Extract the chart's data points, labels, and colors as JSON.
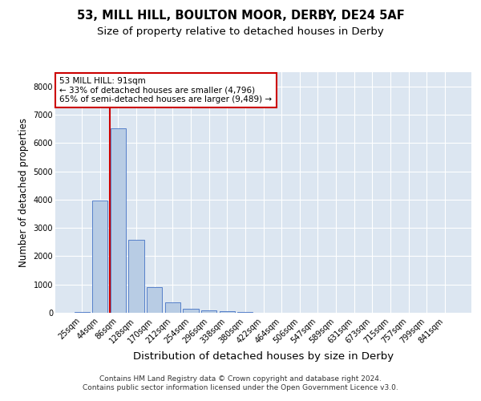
{
  "title_line1": "53, MILL HILL, BOULTON MOOR, DERBY, DE24 5AF",
  "title_line2": "Size of property relative to detached houses in Derby",
  "xlabel": "Distribution of detached houses by size in Derby",
  "ylabel": "Number of detached properties",
  "categories": [
    "25sqm",
    "44sqm",
    "86sqm",
    "128sqm",
    "170sqm",
    "212sqm",
    "254sqm",
    "296sqm",
    "338sqm",
    "380sqm",
    "422sqm",
    "464sqm",
    "506sqm",
    "547sqm",
    "589sqm",
    "631sqm",
    "673sqm",
    "715sqm",
    "757sqm",
    "799sqm",
    "841sqm"
  ],
  "values": [
    30,
    3960,
    6520,
    2580,
    900,
    370,
    155,
    90,
    45,
    30,
    0,
    0,
    0,
    0,
    0,
    0,
    0,
    0,
    0,
    0,
    0
  ],
  "bar_color": "#b8cce4",
  "bar_edge_color": "#4472c4",
  "plot_bg_color": "#dce6f1",
  "grid_color": "#ffffff",
  "vline_color": "#cc0000",
  "annotation_text": "53 MILL HILL: 91sqm\n← 33% of detached houses are smaller (4,796)\n65% of semi-detached houses are larger (9,489) →",
  "annotation_box_edgecolor": "#cc0000",
  "ylim": [
    0,
    8500
  ],
  "yticks": [
    0,
    1000,
    2000,
    3000,
    4000,
    5000,
    6000,
    7000,
    8000
  ],
  "footer_line1": "Contains HM Land Registry data © Crown copyright and database right 2024.",
  "footer_line2": "Contains public sector information licensed under the Open Government Licence v3.0.",
  "title_fontsize": 10.5,
  "subtitle_fontsize": 9.5,
  "ylabel_fontsize": 8.5,
  "xlabel_fontsize": 9.5,
  "tick_fontsize": 7,
  "annotation_fontsize": 7.5,
  "footer_fontsize": 6.5,
  "vline_x_index": 2
}
